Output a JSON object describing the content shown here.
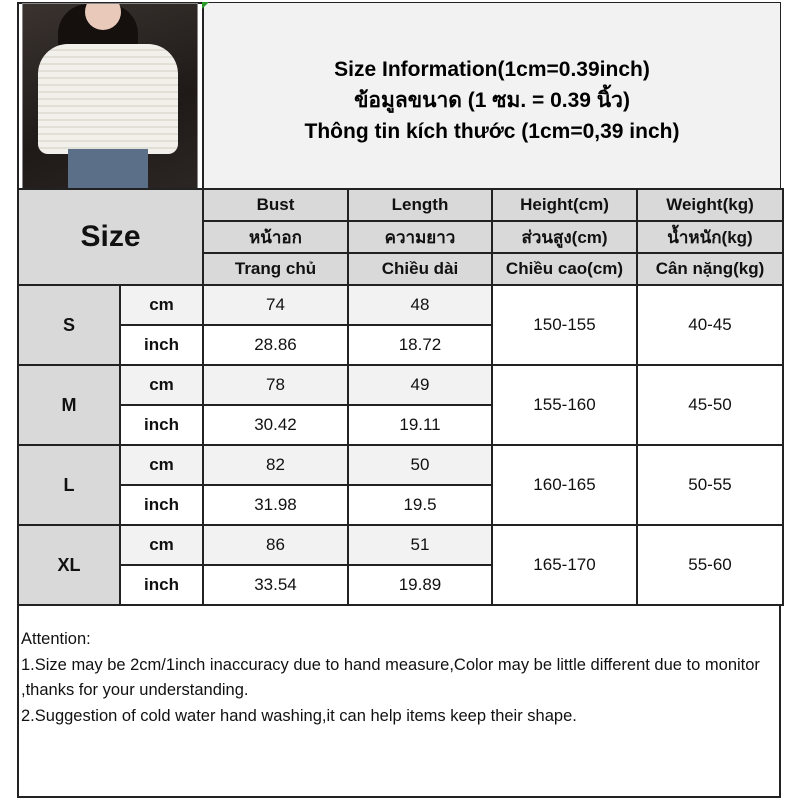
{
  "title": {
    "line1": "Size Information(1cm=0.39inch)",
    "line2": "ข้อมูลขนาด (1 ซม. = 0.39 นิ้ว)",
    "line3": "Thông tin kích thước (1cm=0,39 inch)"
  },
  "table": {
    "size_header": "Size",
    "columns": [
      {
        "en": "Bust",
        "th": "หน้าอก",
        "vi": "Trang chủ"
      },
      {
        "en": "Length",
        "th": "ความยาว",
        "vi": "Chiều dài"
      },
      {
        "en": "Height(cm)",
        "th": "ส่วนสูง(cm)",
        "vi": "Chiều cao(cm)"
      },
      {
        "en": "Weight(kg)",
        "th": "น้ำหนัก(kg)",
        "vi": "Cân nặng(kg)"
      }
    ],
    "unit_cm": "cm",
    "unit_inch": "inch",
    "rows": [
      {
        "size": "S",
        "bust_cm": "74",
        "length_cm": "48",
        "bust_inch": "28.86",
        "length_inch": "18.72",
        "height": "150-155",
        "weight": "40-45"
      },
      {
        "size": "M",
        "bust_cm": "78",
        "length_cm": "49",
        "bust_inch": "30.42",
        "length_inch": "19.11",
        "height": "155-160",
        "weight": "45-50"
      },
      {
        "size": "L",
        "bust_cm": "82",
        "length_cm": "50",
        "bust_inch": "31.98",
        "length_inch": "19.5",
        "height": "160-165",
        "weight": "50-55"
      },
      {
        "size": "XL",
        "bust_cm": "86",
        "length_cm": "51",
        "bust_inch": "33.54",
        "length_inch": "19.89",
        "height": "165-170",
        "weight": "55-60"
      }
    ]
  },
  "attention": {
    "heading": "Attention:",
    "note1": "1.Size may be 2cm/1inch inaccuracy due to hand measure,Color may be little different due to monitor ,thanks for your understanding.",
    "note2": "2.Suggestion of cold water hand washing,it can help items keep their shape."
  }
}
